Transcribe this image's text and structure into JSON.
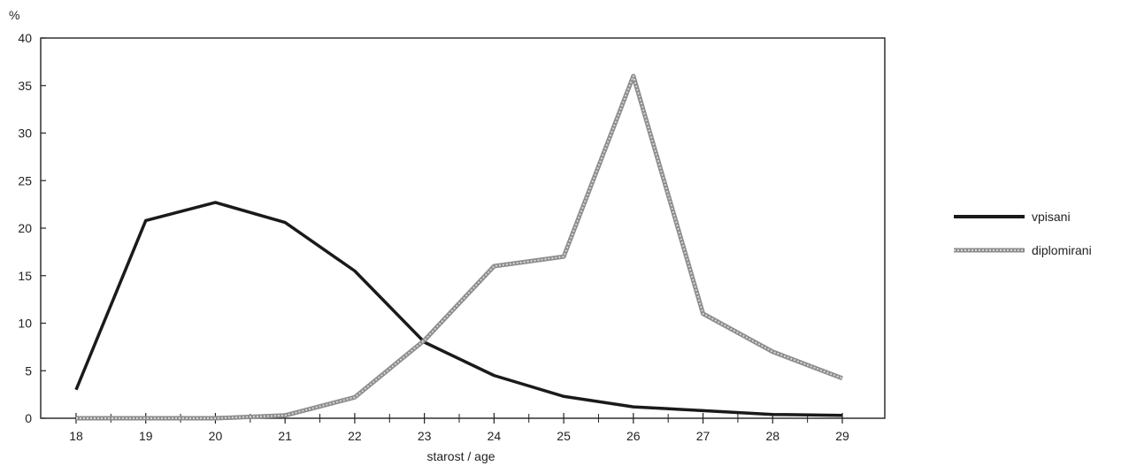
{
  "chart_data": {
    "type": "line",
    "title": "",
    "ylabel": "%",
    "xlabel": "starost  /  age",
    "x": [
      18,
      19,
      20,
      21,
      22,
      23,
      24,
      25,
      26,
      27,
      28,
      29
    ],
    "xlim": [
      18,
      29
    ],
    "ylim": [
      0,
      40
    ],
    "yticks": [
      0,
      5,
      10,
      15,
      20,
      25,
      30,
      35,
      40
    ],
    "grid": false,
    "legend_position": "right",
    "series": [
      {
        "name": "vpisani",
        "color": "#1a1a1a",
        "style": "solid",
        "values": [
          3,
          20.8,
          22.7,
          20.6,
          15.5,
          8,
          4.5,
          2.3,
          1.2,
          0.8,
          0.4,
          0.3
        ]
      },
      {
        "name": "diplomirani",
        "color": "#9a9a9a",
        "style": "hatched",
        "values": [
          0,
          0,
          0,
          0.3,
          2.2,
          8.2,
          16,
          17,
          36,
          11,
          7,
          4.2
        ]
      }
    ]
  }
}
